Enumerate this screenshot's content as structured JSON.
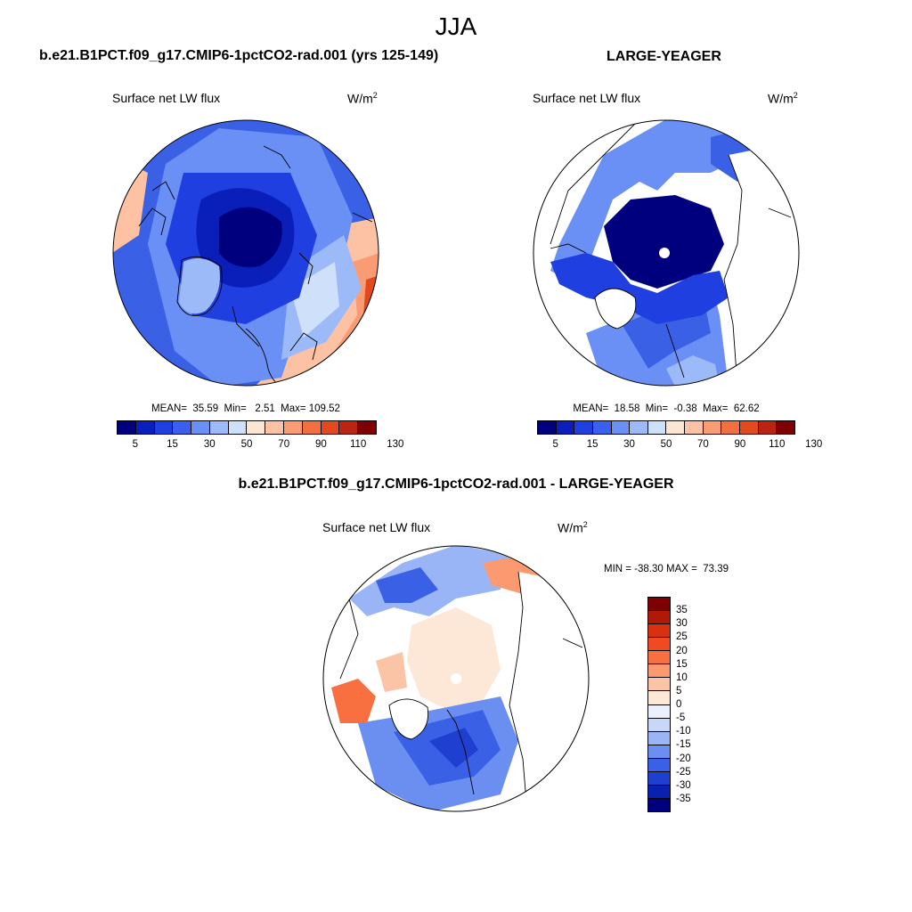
{
  "title": "JJA",
  "panels": [
    {
      "case_title": "b.e21.B1PCT.f09_g17.CMIP6-1pctCO2-rad.001 (yrs 125-149)",
      "left_string": "Surface net LW flux",
      "units": "W/m",
      "units_sup": "2",
      "stats": "MEAN=  35.59  Min=   2.51  Max= 109.52",
      "colorbar_labels": [
        "5",
        "15",
        "30",
        "50",
        "70",
        "90",
        "110",
        "130"
      ],
      "colorbar_colors": [
        "#00007f",
        "#0a1fba",
        "#1f3fe0",
        "#3a60f0",
        "#6a8ff5",
        "#9dbaf8",
        "#cfe0fb",
        "#fde5d3",
        "#fcc2a3",
        "#f99c74",
        "#f2703f",
        "#e24a1e",
        "#b92510",
        "#7f0000"
      ]
    },
    {
      "case_title": "LARGE-YEAGER",
      "left_string": "Surface net LW flux",
      "units": "W/m",
      "units_sup": "2",
      "stats": "MEAN=  18.58  Min=  -0.38  Max=  62.62",
      "colorbar_labels": [
        "5",
        "15",
        "30",
        "50",
        "70",
        "90",
        "110",
        "130"
      ],
      "colorbar_colors": [
        "#00007f",
        "#0a1fba",
        "#1f3fe0",
        "#3a60f0",
        "#6a8ff5",
        "#9dbaf8",
        "#cfe0fb",
        "#fde5d3",
        "#fcc2a3",
        "#f99c74",
        "#f2703f",
        "#e24a1e",
        "#b92510",
        "#7f0000"
      ]
    },
    {
      "case_title": "b.e21.B1PCT.f09_g17.CMIP6-1pctCO2-rad.001 - LARGE-YEAGER",
      "left_string": "Surface net LW flux",
      "units": "W/m",
      "units_sup": "2",
      "minmax": "MIN = -38.30 MAX =  73.39",
      "colorbar_labels": [
        "35",
        "30",
        "25",
        "20",
        "15",
        "10",
        "5",
        "0",
        "-5",
        "-10",
        "-15",
        "-20",
        "-25",
        "-30",
        "-35"
      ],
      "colorbar_colors": [
        "#7f0000",
        "#b01808",
        "#d83010",
        "#f04a20",
        "#f97040",
        "#fb9a70",
        "#fcc4a6",
        "#fde8d8",
        "#eaf1fc",
        "#c6d7fa",
        "#9ab5f6",
        "#6a8ff0",
        "#3a60e6",
        "#1f3fd0",
        "#0a20b0",
        "#00007f"
      ]
    }
  ]
}
